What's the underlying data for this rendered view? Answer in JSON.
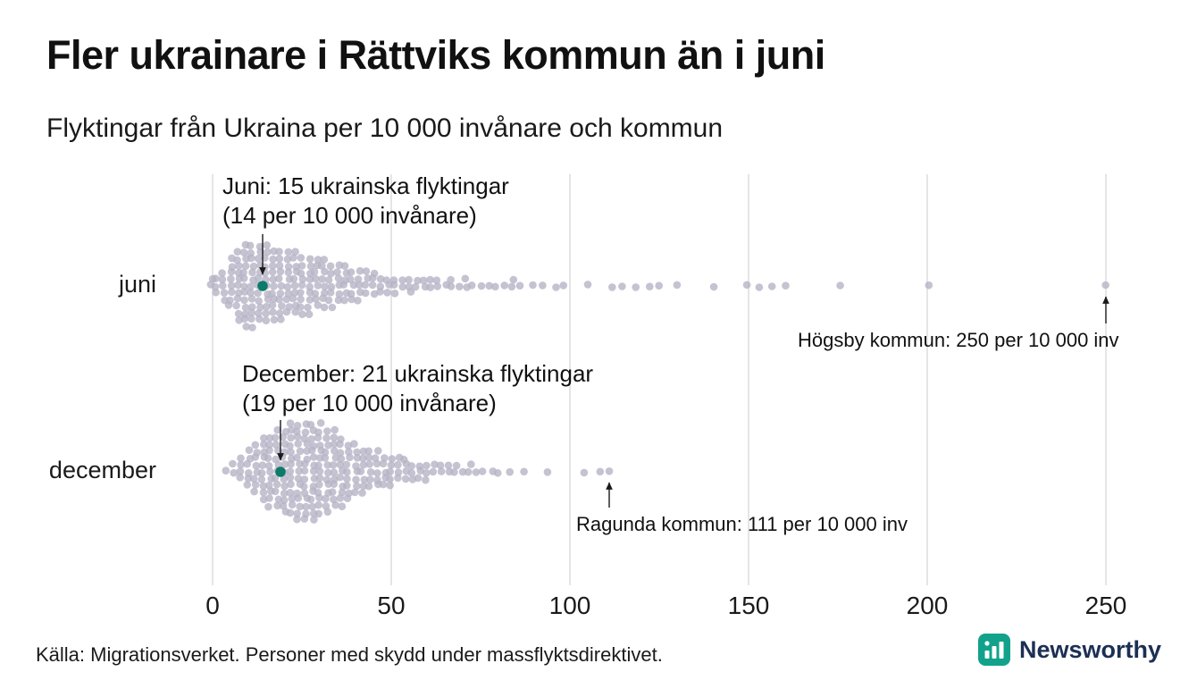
{
  "title": "Fler ukrainare i Rättviks kommun än i juni",
  "subtitle": "Flyktingar från Ukraina per 10 000 invånare och kommun",
  "source_note": "Källa: Migrationsverket. Personer med skydd under massflyktsdirektivet.",
  "brand": {
    "name": "Newsworthy"
  },
  "colors": {
    "dot": "#b7b3c5",
    "highlight": "#0d7a6a",
    "gridline": "#cbcbcb",
    "text": "#1a1a1a",
    "brand_icon": "#12a28b",
    "brand_text": "#1c2f55"
  },
  "chart_data": {
    "type": "beeswarm",
    "unit": "flyktingar från Ukraina per 10 000 invånare, per kommun",
    "x_ticks": [
      0,
      50,
      100,
      150,
      200,
      250
    ],
    "xlim": [
      0,
      255
    ],
    "grid": true,
    "bins_note": "bins = [value per 10 000 inhabitants, approx number of municipalities], estimated from figure",
    "rows": [
      {
        "label": "juni",
        "highlight": {
          "value": 14,
          "label_line1": "Juni: 15 ukrainska flyktingar",
          "label_line2": "(14 per 10 000 invånare)"
        },
        "extreme": {
          "value": 250,
          "label": "Högsby kommun: 250 per 10 000 inv"
        },
        "bins": [
          [
            0,
            2
          ],
          [
            1,
            3
          ],
          [
            3,
            5
          ],
          [
            5,
            8
          ],
          [
            7,
            11
          ],
          [
            9,
            13
          ],
          [
            11,
            13
          ],
          [
            13,
            12
          ],
          [
            15,
            12
          ],
          [
            17,
            11
          ],
          [
            19,
            11
          ],
          [
            21,
            10
          ],
          [
            23,
            10
          ],
          [
            25,
            9
          ],
          [
            27,
            9
          ],
          [
            29,
            8
          ],
          [
            31,
            8
          ],
          [
            33,
            7
          ],
          [
            35,
            6
          ],
          [
            37,
            6
          ],
          [
            39,
            5
          ],
          [
            41,
            5
          ],
          [
            43,
            4
          ],
          [
            45,
            4
          ],
          [
            47,
            3
          ],
          [
            49,
            3
          ],
          [
            51,
            3
          ],
          [
            53,
            2
          ],
          [
            55,
            3
          ],
          [
            57,
            2
          ],
          [
            59,
            2
          ],
          [
            61,
            2
          ],
          [
            63,
            2
          ],
          [
            65,
            1
          ],
          [
            67,
            2
          ],
          [
            69,
            1
          ],
          [
            71,
            2
          ],
          [
            73,
            1
          ],
          [
            75,
            1
          ],
          [
            77,
            1
          ],
          [
            79,
            1
          ],
          [
            82,
            1
          ],
          [
            84,
            2
          ],
          [
            86,
            1
          ],
          [
            90,
            1
          ],
          [
            92,
            1
          ],
          [
            96,
            1
          ],
          [
            98,
            1
          ],
          [
            105,
            1
          ],
          [
            112,
            1
          ],
          [
            115,
            1
          ],
          [
            118,
            1
          ],
          [
            122,
            1
          ],
          [
            125,
            1
          ],
          [
            130,
            1
          ],
          [
            140,
            1
          ],
          [
            150,
            1
          ],
          [
            153,
            1
          ],
          [
            157,
            1
          ],
          [
            160,
            1
          ],
          [
            176,
            1
          ],
          [
            200,
            1
          ],
          [
            250,
            1
          ]
        ]
      },
      {
        "label": "december",
        "highlight": {
          "value": 19,
          "label_line1": "December: 21 ukrainska flyktingar",
          "label_line2": "(19 per 10 000 invånare)"
        },
        "extreme": {
          "value": 111,
          "label": "Ragunda kommun: 111 per 10 000 inv"
        },
        "bins": [
          [
            4,
            1
          ],
          [
            6,
            2
          ],
          [
            8,
            4
          ],
          [
            10,
            6
          ],
          [
            12,
            8
          ],
          [
            14,
            10
          ],
          [
            16,
            11
          ],
          [
            18,
            12
          ],
          [
            20,
            13
          ],
          [
            22,
            14
          ],
          [
            24,
            15
          ],
          [
            26,
            15
          ],
          [
            28,
            15
          ],
          [
            30,
            14
          ],
          [
            32,
            13
          ],
          [
            34,
            12
          ],
          [
            36,
            11
          ],
          [
            38,
            9
          ],
          [
            40,
            8
          ],
          [
            42,
            7
          ],
          [
            44,
            6
          ],
          [
            46,
            6
          ],
          [
            48,
            5
          ],
          [
            50,
            5
          ],
          [
            52,
            4
          ],
          [
            54,
            4
          ],
          [
            56,
            3
          ],
          [
            58,
            3
          ],
          [
            60,
            3
          ],
          [
            62,
            2
          ],
          [
            64,
            2
          ],
          [
            66,
            2
          ],
          [
            68,
            2
          ],
          [
            70,
            1
          ],
          [
            72,
            2
          ],
          [
            74,
            1
          ],
          [
            76,
            1
          ],
          [
            78,
            1
          ],
          [
            80,
            1
          ],
          [
            83,
            1
          ],
          [
            87,
            1
          ],
          [
            94,
            1
          ],
          [
            104,
            1
          ],
          [
            108,
            1
          ],
          [
            111,
            1
          ]
        ]
      }
    ]
  }
}
